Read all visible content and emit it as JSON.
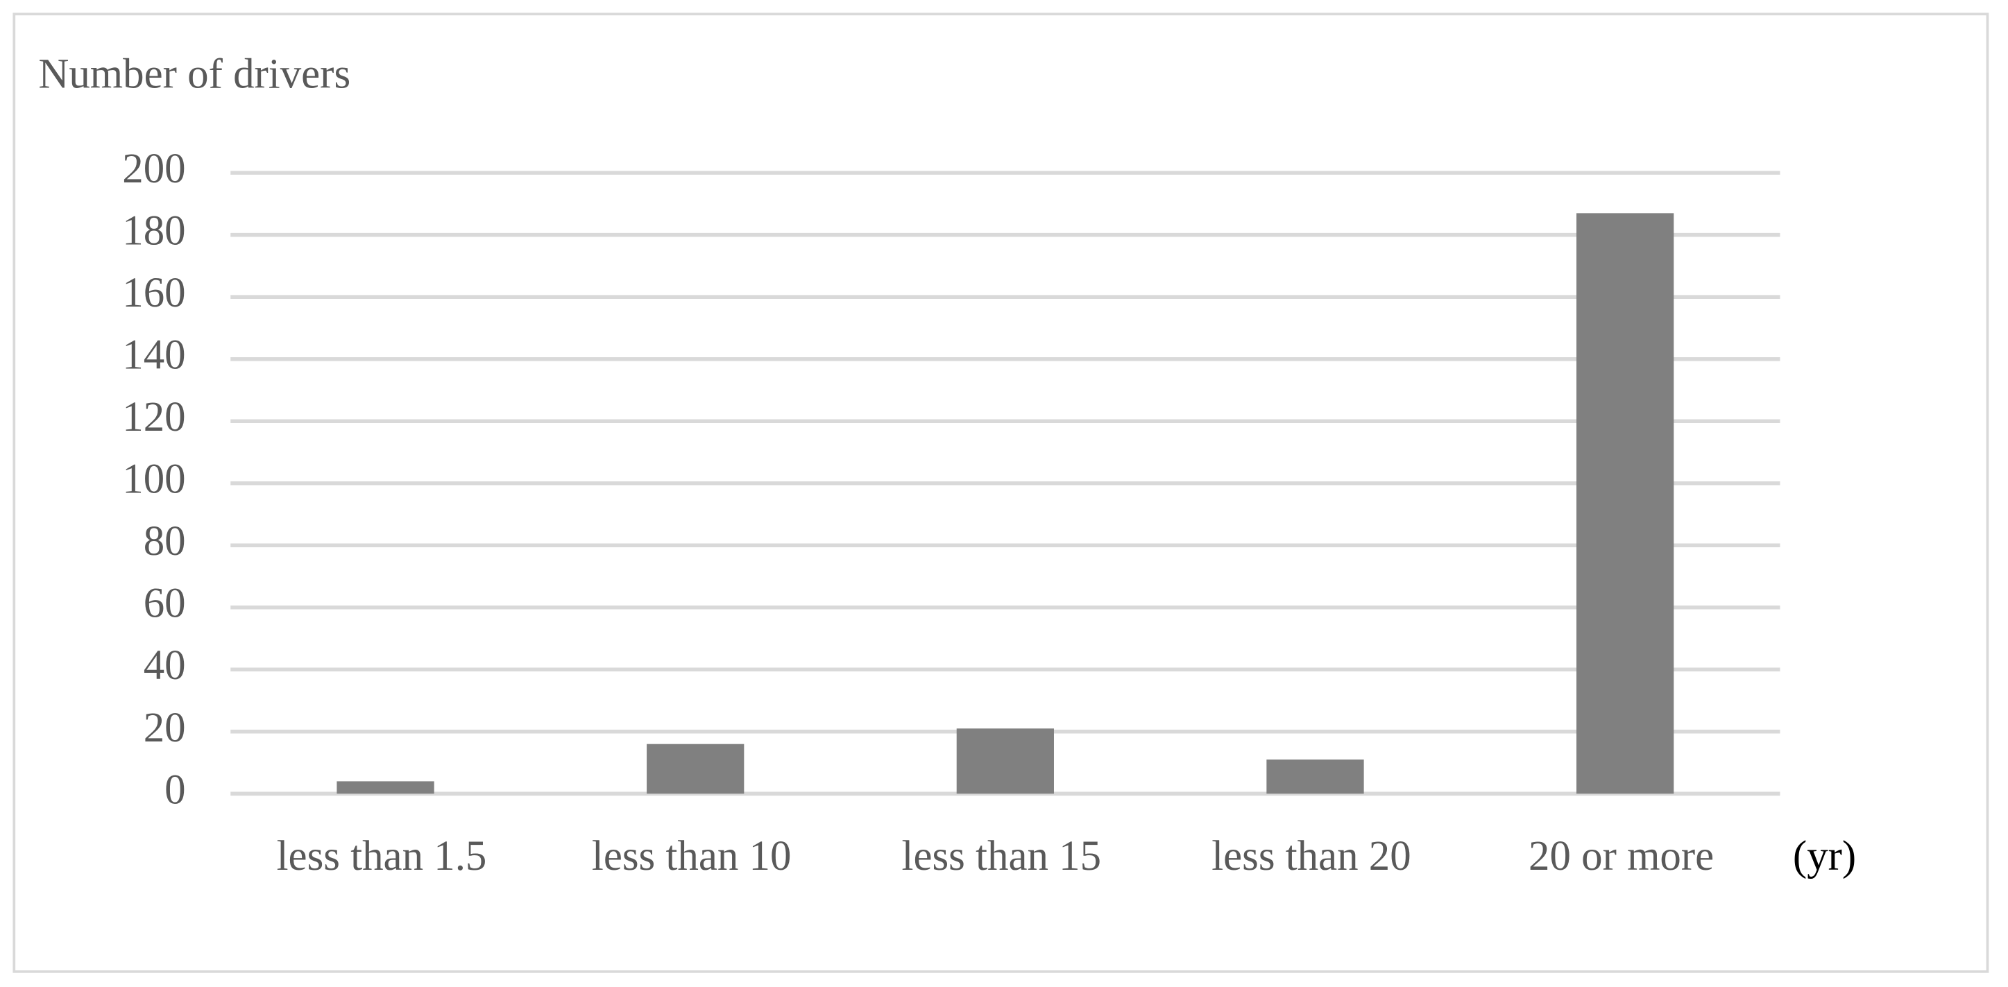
{
  "chart_data": {
    "type": "bar",
    "y_label": "Number of drivers",
    "x_label": "(yr)",
    "categories": [
      "less than 1.5",
      "less than 10",
      "less than 15",
      "less than 20",
      "20 or more"
    ],
    "values": [
      4,
      16,
      21,
      11,
      187
    ],
    "color": "#808080",
    "ylim": [
      0,
      200
    ],
    "yticks": [
      0,
      20,
      40,
      60,
      80,
      100,
      120,
      140,
      160,
      180,
      200
    ],
    "grid": true
  }
}
